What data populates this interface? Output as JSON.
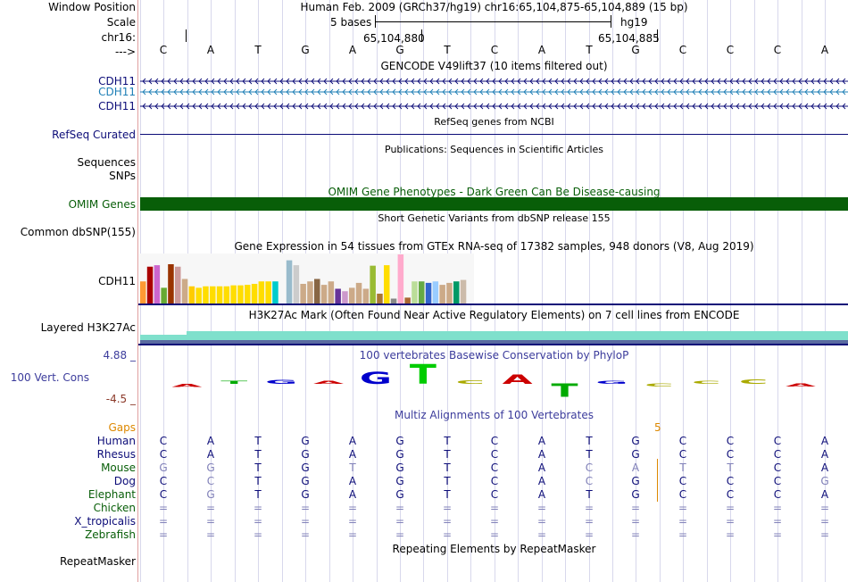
{
  "header": {
    "window_position_label": "Window Position",
    "scale_label": "Scale",
    "chrom_label": "chr16:",
    "arrow_label": "--->",
    "assembly_title": "Human Feb. 2009 (GRCh37/hg19)   chr16:65,104,875-65,104,889 (15 bp)",
    "scale_text": "5 bases",
    "assembly_short": "hg19",
    "coord_1": "65,104,880",
    "coord_2": "65,104,885"
  },
  "bases": [
    "C",
    "A",
    "T",
    "G",
    "A",
    "G",
    "T",
    "C",
    "A",
    "T",
    "G",
    "C",
    "C",
    "C",
    "A"
  ],
  "tracks": {
    "gencode_title": "GENCODE V49lift37 (10 items filtered out)",
    "gencode_items": [
      "CDH11",
      "CDH11",
      "CDH11"
    ],
    "refseq_title": "RefSeq genes from NCBI",
    "refseq_label": "RefSeq Curated",
    "pubs_title": "Publications: Sequences in Scientific Articles",
    "sequences_label": "Sequences",
    "snps_label": "SNPs",
    "omim_title": "OMIM Gene Phenotypes - Dark Green Can Be Disease-causing",
    "omim_label": "OMIM Genes",
    "dbsnp_title": "Short Genetic Variants from dbSNP release 155",
    "dbsnp_label": "Common dbSNP(155)",
    "gtex_title": "Gene Expression in 54 tissues from GTEx RNA-seq of 17382 samples, 948 donors (V8, Aug 2019)",
    "gtex_label": "CDH11",
    "h3k27_title": "H3K27Ac Mark (Often Found Near Active Regulatory Elements) on 7 cell lines from ENCODE",
    "h3k27_label": "Layered H3K27Ac",
    "phylop_max": "4.88 _",
    "phylop_min": "-4.5 _",
    "phylop_title": "100 vertebrates Basewise Conservation by PhyloP",
    "phylop_label": "100 Vert. Cons",
    "multiz_title": "Multiz Alignments of 100 Vertebrates",
    "gaps_label": "Gaps",
    "gap_count": "5",
    "repeat_title": "Repeating Elements by RepeatMasker",
    "repeat_label": "RepeatMasker"
  },
  "gtex_bars": [
    {
      "value": 0.45,
      "color": "#ff9933"
    },
    {
      "value": 0.75,
      "color": "#aa0000"
    },
    {
      "value": 0.78,
      "color": "#cc66cc"
    },
    {
      "value": 0.32,
      "color": "#66aa33"
    },
    {
      "value": 0.8,
      "color": "#993300"
    },
    {
      "value": 0.75,
      "color": "#cc9999"
    },
    {
      "value": 0.5,
      "color": "#ccaa88"
    },
    {
      "value": 0.35,
      "color": "#ffcc00"
    },
    {
      "value": 0.32,
      "color": "#ffdd00"
    },
    {
      "value": 0.35,
      "color": "#ffdd00"
    },
    {
      "value": 0.35,
      "color": "#ffdd00"
    },
    {
      "value": 0.35,
      "color": "#ffdd00"
    },
    {
      "value": 0.35,
      "color": "#ffdd00"
    },
    {
      "value": 0.37,
      "color": "#ffdd00"
    },
    {
      "value": 0.37,
      "color": "#ffdd00"
    },
    {
      "value": 0.38,
      "color": "#ffdd00"
    },
    {
      "value": 0.4,
      "color": "#ffdd00"
    },
    {
      "value": 0.45,
      "color": "#ffdd00"
    },
    {
      "value": 0.45,
      "color": "#ffdd00"
    },
    {
      "value": 0.45,
      "color": "#00cccc"
    },
    {
      "value": 0.0,
      "color": "#ffffff"
    },
    {
      "value": 0.88,
      "color": "#99bbcc"
    },
    {
      "value": 0.78,
      "color": "#cccccc"
    },
    {
      "value": 0.4,
      "color": "#ccaa88"
    },
    {
      "value": 0.45,
      "color": "#ccaa88"
    },
    {
      "value": 0.5,
      "color": "#886644"
    },
    {
      "value": 0.38,
      "color": "#ccaa88"
    },
    {
      "value": 0.45,
      "color": "#ccaa88"
    },
    {
      "value": 0.3,
      "color": "#663399"
    },
    {
      "value": 0.25,
      "color": "#cc99cc"
    },
    {
      "value": 0.32,
      "color": "#ccaa88"
    },
    {
      "value": 0.42,
      "color": "#ccaa88"
    },
    {
      "value": 0.3,
      "color": "#ccaa88"
    },
    {
      "value": 0.77,
      "color": "#99bb33"
    },
    {
      "value": 0.2,
      "color": "#aa7733"
    },
    {
      "value": 0.78,
      "color": "#ffdd00"
    },
    {
      "value": 0.1,
      "color": "#888888"
    },
    {
      "value": 1.0,
      "color": "#ffaacc"
    },
    {
      "value": 0.12,
      "color": "#aa6633"
    },
    {
      "value": 0.45,
      "color": "#bbdd99"
    },
    {
      "value": 0.45,
      "color": "#66aa44"
    },
    {
      "value": 0.42,
      "color": "#3366cc"
    },
    {
      "value": 0.45,
      "color": "#99ccff"
    },
    {
      "value": 0.38,
      "color": "#ccaa88"
    },
    {
      "value": 0.42,
      "color": "#ccaa88"
    },
    {
      "value": 0.45,
      "color": "#009966"
    },
    {
      "value": 0.48,
      "color": "#ccbbaa"
    }
  ],
  "phylop_letters": [
    {
      "base": "A",
      "score": -0.3,
      "color": "#cc0000"
    },
    {
      "base": "T",
      "score": 0.15,
      "color": "#00aa00"
    },
    {
      "base": "G",
      "score": 0.4,
      "color": "#0000cc"
    },
    {
      "base": "A",
      "score": 0.3,
      "color": "#cc0000"
    },
    {
      "base": "G",
      "score": 1.2,
      "color": "#0000cc"
    },
    {
      "base": "T",
      "score": 1.9,
      "color": "#00cc00"
    },
    {
      "base": "C",
      "score": 0.35,
      "color": "#aaaa00"
    },
    {
      "base": "A",
      "score": 0.9,
      "color": "#cc0000"
    },
    {
      "base": "T",
      "score": -1.3,
      "color": "#00aa00"
    },
    {
      "base": "G",
      "score": 0.0,
      "color": "#0000cc"
    },
    {
      "base": "C",
      "score": -0.1,
      "color": "#aaaa00"
    },
    {
      "base": "C",
      "score": 0.0,
      "color": "#aaaa00"
    },
    {
      "base": "C",
      "score": 0.45,
      "color": "#aaaa00"
    },
    {
      "base": "A",
      "score": -0.1,
      "color": "#cc0000"
    }
  ],
  "alignments": [
    {
      "species": "Human",
      "color": "#0c0c78",
      "seq": [
        "C",
        "A",
        "T",
        "G",
        "A",
        "G",
        "T",
        "C",
        "A",
        "T",
        "G",
        "C",
        "C",
        "C",
        "A"
      ],
      "faded": [
        false,
        false,
        false,
        false,
        false,
        false,
        false,
        false,
        false,
        false,
        false,
        false,
        false,
        false,
        false
      ]
    },
    {
      "species": "Rhesus",
      "color": "#0c0c78",
      "seq": [
        "C",
        "A",
        "T",
        "G",
        "A",
        "G",
        "T",
        "C",
        "A",
        "T",
        "G",
        "C",
        "C",
        "C",
        "A"
      ],
      "faded": [
        false,
        false,
        false,
        false,
        false,
        false,
        false,
        false,
        false,
        false,
        false,
        false,
        false,
        false,
        false
      ]
    },
    {
      "species": "Mouse",
      "color": "#085e08",
      "seq": [
        "G",
        "G",
        "T",
        "G",
        "T",
        "G",
        "T",
        "C",
        "A",
        "C",
        "A",
        "T",
        "T",
        "C",
        "A"
      ],
      "faded": [
        true,
        true,
        false,
        false,
        true,
        false,
        false,
        false,
        false,
        true,
        true,
        true,
        true,
        false,
        false
      ]
    },
    {
      "species": "Dog",
      "color": "#0c0c78",
      "seq": [
        "C",
        "C",
        "T",
        "G",
        "A",
        "G",
        "T",
        "C",
        "A",
        "C",
        "G",
        "C",
        "C",
        "C",
        "G"
      ],
      "faded": [
        false,
        true,
        false,
        false,
        false,
        false,
        false,
        false,
        false,
        true,
        false,
        false,
        false,
        false,
        true
      ]
    },
    {
      "species": "Elephant",
      "color": "#085e08",
      "seq": [
        "C",
        "G",
        "T",
        "G",
        "A",
        "G",
        "T",
        "C",
        "A",
        "T",
        "G",
        "C",
        "C",
        "C",
        "A"
      ],
      "faded": [
        false,
        true,
        false,
        false,
        false,
        false,
        false,
        false,
        false,
        false,
        false,
        false,
        false,
        false,
        false
      ]
    },
    {
      "species": "Chicken",
      "color": "#085e08",
      "seq": [
        "=",
        "=",
        "=",
        "=",
        "=",
        "=",
        "=",
        "=",
        "=",
        "=",
        "=",
        "=",
        "=",
        "=",
        "="
      ],
      "faded": [
        true,
        true,
        true,
        true,
        true,
        true,
        true,
        true,
        true,
        true,
        true,
        true,
        true,
        true,
        true
      ]
    },
    {
      "species": "X_tropicalis",
      "color": "#0c0c78",
      "seq": [
        "=",
        "=",
        "=",
        "=",
        "=",
        "=",
        "=",
        "=",
        "=",
        "=",
        "=",
        "=",
        "=",
        "=",
        "="
      ],
      "faded": [
        true,
        true,
        true,
        true,
        true,
        true,
        true,
        true,
        true,
        true,
        true,
        true,
        true,
        true,
        true
      ]
    },
    {
      "species": "Zebrafish",
      "color": "#085e08",
      "seq": [
        "=",
        "=",
        "=",
        "=",
        "=",
        "=",
        "=",
        "=",
        "=",
        "=",
        "=",
        "=",
        "=",
        "=",
        "="
      ],
      "faded": [
        true,
        true,
        true,
        true,
        true,
        true,
        true,
        true,
        true,
        true,
        true,
        true,
        true,
        true,
        true
      ]
    }
  ]
}
